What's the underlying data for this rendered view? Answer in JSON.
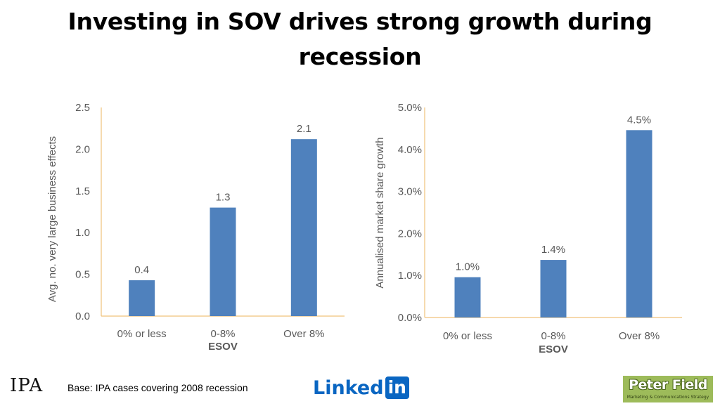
{
  "title": {
    "line1": "Investing in SOV drives strong growth during",
    "line2": "recession"
  },
  "colors": {
    "bar": "#4f81bd",
    "axis": "#f0c27a",
    "text": "#595959"
  },
  "chart_data": [
    {
      "type": "bar",
      "categories": [
        "0% or less",
        "0-8%",
        "Over 8%"
      ],
      "values": [
        0.43,
        1.3,
        2.12
      ],
      "data_labels": [
        "0.4",
        "1.3",
        "2.1"
      ],
      "yticks": [
        "0.0",
        "0.5",
        "1.0",
        "1.5",
        "2.0",
        "2.5"
      ],
      "ylim": [
        0,
        2.5
      ],
      "xlabel": "ESOV",
      "ylabel": "Avg. no. very large business effects",
      "grid": false
    },
    {
      "type": "bar",
      "categories": [
        "0% or less",
        "0-8%",
        "Over 8%"
      ],
      "values": [
        0.96,
        1.37,
        4.46
      ],
      "data_labels": [
        "1.0%",
        "1.4%",
        "4.5%"
      ],
      "yticks": [
        "0.0%",
        "1.0%",
        "2.0%",
        "3.0%",
        "4.0%",
        "5.0%"
      ],
      "ylim": [
        0,
        5
      ],
      "xlabel": "ESOV",
      "ylabel": "Annualised market share growth",
      "grid": false
    }
  ],
  "footer": {
    "logo_ipa": "IPA",
    "base_text": "Base: IPA cases covering 2008 recession",
    "linkedin_text": "Linked",
    "linkedin_in": "in",
    "peter_field_name": "Peter Field",
    "peter_field_tagline": "Marketing & Communications Strategy"
  }
}
